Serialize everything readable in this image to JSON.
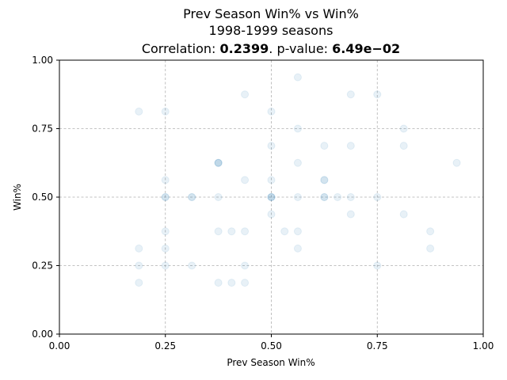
{
  "chart_data": {
    "type": "scatter",
    "title": "Prev Season Win% vs Win%",
    "subtitle": "1998-1999 seasons",
    "stats": {
      "corr_label": "Correlation: ",
      "corr_value": "0.2399",
      "sep": ". p-value: ",
      "p_value": "6.49e−0",
      "p_value_tail": "2"
    },
    "xlabel": "Prev Season Win%",
    "ylabel": "Win%",
    "xlim": [
      0,
      1
    ],
    "ylim": [
      0,
      1
    ],
    "xticks": [
      "0.00",
      "0.25",
      "0.50",
      "0.75",
      "1.00"
    ],
    "yticks": [
      "0.00",
      "0.25",
      "0.50",
      "0.75",
      "1.00"
    ],
    "tick_values": [
      0,
      0.25,
      0.5,
      0.75,
      1.0
    ],
    "grid": true,
    "marker_color": "#1f77b4",
    "points": [
      [
        0.1875,
        0.8125
      ],
      [
        0.1875,
        0.3125
      ],
      [
        0.1875,
        0.25
      ],
      [
        0.1875,
        0.1875
      ],
      [
        0.25,
        0.8125
      ],
      [
        0.25,
        0.5625
      ],
      [
        0.25,
        0.5
      ],
      [
        0.25,
        0.5
      ],
      [
        0.25,
        0.375
      ],
      [
        0.25,
        0.3125
      ],
      [
        0.25,
        0.25
      ],
      [
        0.3125,
        0.5
      ],
      [
        0.3125,
        0.5
      ],
      [
        0.3125,
        0.25
      ],
      [
        0.375,
        0.625
      ],
      [
        0.375,
        0.625
      ],
      [
        0.375,
        0.625
      ],
      [
        0.375,
        0.5
      ],
      [
        0.375,
        0.375
      ],
      [
        0.375,
        0.1875
      ],
      [
        0.40625,
        0.375
      ],
      [
        0.40625,
        0.1875
      ],
      [
        0.4375,
        0.875
      ],
      [
        0.4375,
        0.5625
      ],
      [
        0.4375,
        0.375
      ],
      [
        0.4375,
        0.25
      ],
      [
        0.4375,
        0.1875
      ],
      [
        0.5,
        0.8125
      ],
      [
        0.5,
        0.6875
      ],
      [
        0.5,
        0.5625
      ],
      [
        0.5,
        0.5
      ],
      [
        0.5,
        0.5
      ],
      [
        0.5,
        0.5
      ],
      [
        0.5,
        0.4375
      ],
      [
        0.53125,
        0.375
      ],
      [
        0.5625,
        0.9375
      ],
      [
        0.5625,
        0.75
      ],
      [
        0.5625,
        0.625
      ],
      [
        0.5625,
        0.5
      ],
      [
        0.5625,
        0.375
      ],
      [
        0.5625,
        0.3125
      ],
      [
        0.625,
        0.6875
      ],
      [
        0.625,
        0.5625
      ],
      [
        0.625,
        0.5625
      ],
      [
        0.625,
        0.5
      ],
      [
        0.625,
        0.5
      ],
      [
        0.65625,
        0.5
      ],
      [
        0.6875,
        0.875
      ],
      [
        0.6875,
        0.6875
      ],
      [
        0.6875,
        0.5
      ],
      [
        0.6875,
        0.4375
      ],
      [
        0.75,
        0.875
      ],
      [
        0.75,
        0.5
      ],
      [
        0.75,
        0.25
      ],
      [
        0.8125,
        0.75
      ],
      [
        0.8125,
        0.6875
      ],
      [
        0.8125,
        0.4375
      ],
      [
        0.875,
        0.375
      ],
      [
        0.875,
        0.3125
      ],
      [
        0.9375,
        0.625
      ]
    ]
  }
}
